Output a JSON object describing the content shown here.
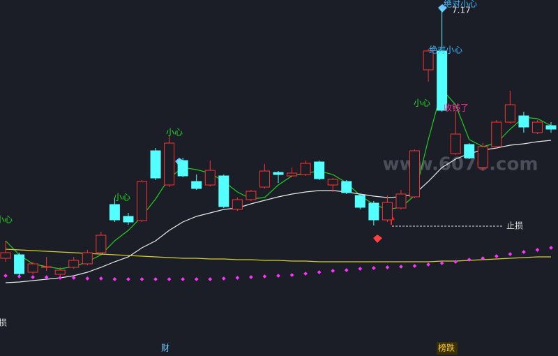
{
  "chart_data": {
    "type": "candlestick",
    "categories": [
      null,
      null,
      null,
      null,
      null,
      null,
      null,
      null,
      null,
      null,
      null,
      null,
      null,
      null,
      null,
      null,
      null,
      null,
      null,
      null,
      null,
      null,
      null,
      null,
      null,
      null,
      null,
      null,
      null,
      null,
      null,
      null,
      null,
      null,
      null,
      null,
      null,
      null,
      null,
      null,
      null
    ],
    "open": [
      3.59,
      3.64,
      3.39,
      3.46,
      3.36,
      3.46,
      3.51,
      3.67,
      4.36,
      4.19,
      4.13,
      5.13,
      4.64,
      4.99,
      4.69,
      4.64,
      4.77,
      4.29,
      4.43,
      4.61,
      4.82,
      4.77,
      4.79,
      4.97,
      4.64,
      4.69,
      4.49,
      4.38,
      4.14,
      4.31,
      4.47,
      6.29,
      6.56,
      5.09,
      5.22,
      4.89,
      5.19,
      5.54,
      5.63,
      5.39,
      5.49
    ],
    "high": [
      3.84,
      3.67,
      3.54,
      3.61,
      3.46,
      3.61,
      3.71,
      3.97,
      4.46,
      4.24,
      4.71,
      5.17,
      5.34,
      5.03,
      4.79,
      4.99,
      4.79,
      4.46,
      4.57,
      4.94,
      4.84,
      4.89,
      4.99,
      4.99,
      4.74,
      4.71,
      4.51,
      4.41,
      4.49,
      4.57,
      5.15,
      6.59,
      7.17,
      5.69,
      5.24,
      5.24,
      5.57,
      5.99,
      5.69,
      5.57,
      5.54
    ],
    "low": [
      3.54,
      3.34,
      3.36,
      3.41,
      3.33,
      3.44,
      3.49,
      3.65,
      4.11,
      4.07,
      4.11,
      4.71,
      4.61,
      4.75,
      4.57,
      4.62,
      4.31,
      4.27,
      4.41,
      4.59,
      4.67,
      4.75,
      4.77,
      4.71,
      4.54,
      4.51,
      4.29,
      4.06,
      4.11,
      4.29,
      4.45,
      6.12,
      5.69,
      5.07,
      5.01,
      4.84,
      5.17,
      5.52,
      5.39,
      5.37,
      5.39
    ],
    "close": [
      3.67,
      3.37,
      3.51,
      3.47,
      3.42,
      3.56,
      3.67,
      3.92,
      4.14,
      4.11,
      4.69,
      4.74,
      5.24,
      4.77,
      4.59,
      4.85,
      4.33,
      4.43,
      4.55,
      4.84,
      4.79,
      4.81,
      4.95,
      4.73,
      4.72,
      4.53,
      4.32,
      4.14,
      4.39,
      4.51,
      5.13,
      6.56,
      5.71,
      5.37,
      5.03,
      5.19,
      5.54,
      5.79,
      5.47,
      5.54,
      5.44
    ],
    "up_color": "#ff3232",
    "down_color": "#54ffff",
    "ylim": [
      2.19,
      7.29
    ],
    "series": [
      {
        "style": "line",
        "color": "#22cc22",
        "values": [
          3.84,
          3.64,
          3.51,
          3.47,
          3.44,
          3.47,
          3.54,
          3.64,
          3.84,
          3.99,
          4.19,
          4.44,
          4.74,
          4.89,
          4.86,
          4.81,
          4.69,
          4.54,
          4.44,
          4.46,
          4.64,
          4.77,
          4.81,
          4.84,
          4.79,
          4.67,
          4.49,
          4.36,
          4.29,
          4.32,
          4.49,
          5.29,
          6.01,
          5.79,
          5.29,
          5.19,
          5.24,
          5.44,
          5.61,
          5.59,
          5.49
        ]
      },
      {
        "style": "line",
        "color": "#e8e8e8",
        "values": [
          3.24,
          3.25,
          3.27,
          3.29,
          3.31,
          3.34,
          3.39,
          3.46,
          3.54,
          3.61,
          3.74,
          3.84,
          3.99,
          4.11,
          4.19,
          4.24,
          4.29,
          4.31,
          4.37,
          4.42,
          4.47,
          4.51,
          4.54,
          4.56,
          4.56,
          4.54,
          4.51,
          4.48,
          4.46,
          4.47,
          4.51,
          4.69,
          4.89,
          5.01,
          5.09,
          5.14,
          5.17,
          5.21,
          5.23,
          5.26,
          5.28
        ]
      },
      {
        "style": "line",
        "color": "#d8d030",
        "values": [
          3.72,
          3.71,
          3.7,
          3.69,
          3.68,
          3.67,
          3.66,
          3.65,
          3.64,
          3.63,
          3.62,
          3.61,
          3.6,
          3.59,
          3.59,
          3.58,
          3.58,
          3.57,
          3.57,
          3.56,
          3.56,
          3.55,
          3.55,
          3.54,
          3.54,
          3.54,
          3.54,
          3.54,
          3.54,
          3.54,
          3.54,
          3.54,
          3.55,
          3.55,
          3.56,
          3.57,
          3.58,
          3.59,
          3.6,
          3.61,
          3.61
        ]
      },
      {
        "style": "dots",
        "color": "#ff33ff",
        "values": [
          3.34,
          3.33,
          3.32,
          3.32,
          3.31,
          3.31,
          3.3,
          3.3,
          3.29,
          3.29,
          3.29,
          3.29,
          3.29,
          3.29,
          3.29,
          3.29,
          3.3,
          3.31,
          3.32,
          3.33,
          3.34,
          3.35,
          3.37,
          3.39,
          3.41,
          3.42,
          3.44,
          3.45,
          3.46,
          3.47,
          3.48,
          3.5,
          3.52,
          3.54,
          3.57,
          3.59,
          3.62,
          3.65,
          3.68,
          3.71,
          3.74
        ]
      }
    ],
    "annotations": [
      "小心",
      "小心",
      "小心",
      "小心",
      "绝对小心",
      "绝对小心",
      "收钱了",
      "止损",
      "损",
      "财",
      "榜跌",
      "www.6070.com"
    ]
  }
}
